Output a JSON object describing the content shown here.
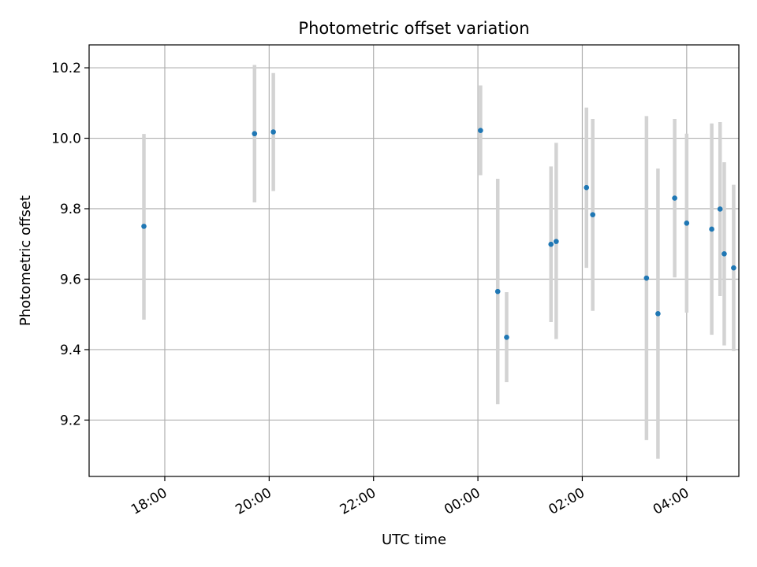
{
  "chart_data": {
    "type": "scatter",
    "title": "Photometric offset variation",
    "xlabel": "UTC time",
    "ylabel": "Photometric offset",
    "x_unit": "hours (UTC), continuing past midnight",
    "xlim": [
      16.55,
      29.0
    ],
    "ylim": [
      9.04,
      10.265
    ],
    "x_ticks": [
      {
        "value": 18,
        "label": "18:00"
      },
      {
        "value": 20,
        "label": "20:00"
      },
      {
        "value": 22,
        "label": "22:00"
      },
      {
        "value": 24,
        "label": "00:00"
      },
      {
        "value": 26,
        "label": "02:00"
      },
      {
        "value": 28,
        "label": "04:00"
      }
    ],
    "y_ticks": [
      {
        "value": 9.2,
        "label": "9.2"
      },
      {
        "value": 9.4,
        "label": "9.4"
      },
      {
        "value": 9.6,
        "label": "9.6"
      },
      {
        "value": 9.8,
        "label": "9.8"
      },
      {
        "value": 10.0,
        "label": "10.0"
      },
      {
        "value": 10.2,
        "label": "10.2"
      }
    ],
    "grid": true,
    "point_color": "#1f77b4",
    "errorbar_color": "#d3d3d3",
    "points": [
      {
        "x": 17.6,
        "y": 9.75,
        "ylow": 9.485,
        "yhigh": 10.012
      },
      {
        "x": 19.72,
        "y": 10.013,
        "ylow": 9.818,
        "yhigh": 10.208
      },
      {
        "x": 20.08,
        "y": 10.018,
        "ylow": 9.85,
        "yhigh": 10.185
      },
      {
        "x": 24.05,
        "y": 10.022,
        "ylow": 9.895,
        "yhigh": 10.15
      },
      {
        "x": 24.38,
        "y": 9.565,
        "ylow": 9.245,
        "yhigh": 9.885
      },
      {
        "x": 24.55,
        "y": 9.435,
        "ylow": 9.308,
        "yhigh": 9.563
      },
      {
        "x": 25.4,
        "y": 9.699,
        "ylow": 9.478,
        "yhigh": 9.92
      },
      {
        "x": 25.5,
        "y": 9.707,
        "ylow": 9.43,
        "yhigh": 9.987
      },
      {
        "x": 26.08,
        "y": 9.86,
        "ylow": 9.632,
        "yhigh": 10.087
      },
      {
        "x": 26.2,
        "y": 9.783,
        "ylow": 9.51,
        "yhigh": 10.055
      },
      {
        "x": 27.23,
        "y": 9.603,
        "ylow": 9.143,
        "yhigh": 10.063
      },
      {
        "x": 27.45,
        "y": 9.502,
        "ylow": 9.09,
        "yhigh": 9.914
      },
      {
        "x": 27.77,
        "y": 9.83,
        "ylow": 9.605,
        "yhigh": 10.055
      },
      {
        "x": 28.0,
        "y": 9.759,
        "ylow": 9.505,
        "yhigh": 10.013
      },
      {
        "x": 28.48,
        "y": 9.742,
        "ylow": 9.442,
        "yhigh": 10.042
      },
      {
        "x": 28.64,
        "y": 9.799,
        "ylow": 9.552,
        "yhigh": 10.046
      },
      {
        "x": 28.72,
        "y": 9.672,
        "ylow": 9.412,
        "yhigh": 9.932
      },
      {
        "x": 28.9,
        "y": 9.632,
        "ylow": 9.396,
        "yhigh": 9.868
      }
    ]
  }
}
